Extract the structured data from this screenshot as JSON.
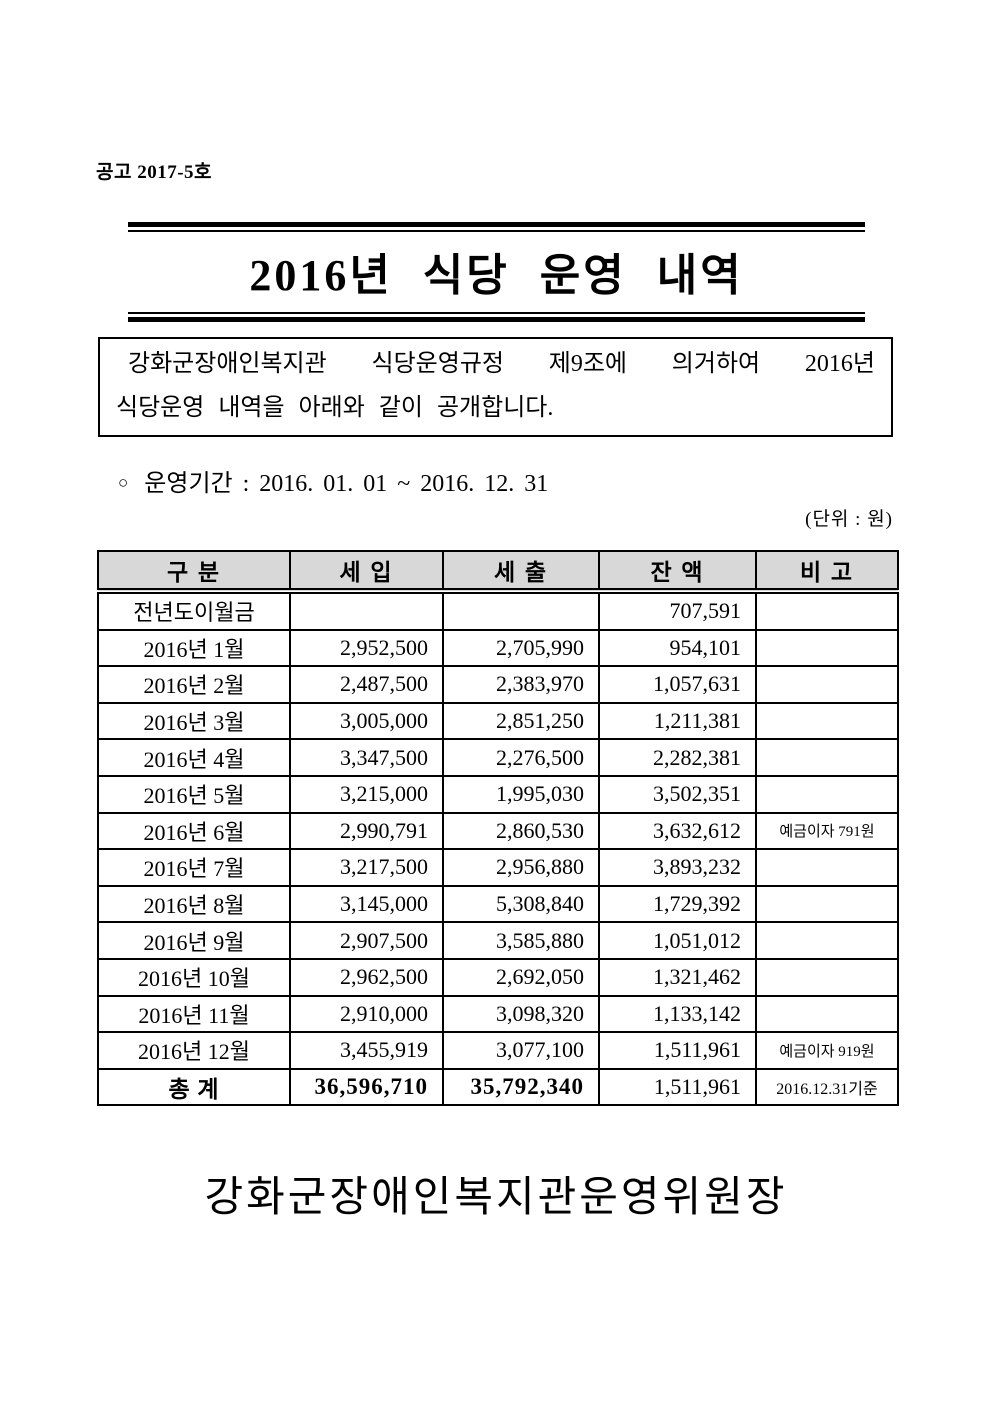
{
  "doc": {
    "notice_number": "공고 2017-5호",
    "title": "2016년 식당 운영 내역",
    "intro_line1": "강화군장애인복지관 식당운영규정 제9조에 의거하여 2016년",
    "intro_line2": "식당운영 내역을 아래와 같이 공개합니다.",
    "period_bullet": "○",
    "period_text": "운영기간 : 2016. 01. 01 ~ 2016. 12. 31",
    "unit_note": "(단위 : 원)",
    "signature": "강화군장애인복지관운영위원장"
  },
  "colors": {
    "paper": "#ffffff",
    "ink": "#000000",
    "table_header_bg": "#d8d8d8"
  },
  "table": {
    "headers": [
      "구 분",
      "세 입",
      "세 출",
      "잔 액",
      "비 고"
    ],
    "rows": [
      {
        "label": "전년도이월금",
        "income": "",
        "expense": "",
        "balance": "707,591",
        "note": ""
      },
      {
        "label": "2016년 1월",
        "income": "2,952,500",
        "expense": "2,705,990",
        "balance": "954,101",
        "note": ""
      },
      {
        "label": "2016년 2월",
        "income": "2,487,500",
        "expense": "2,383,970",
        "balance": "1,057,631",
        "note": ""
      },
      {
        "label": "2016년 3월",
        "income": "3,005,000",
        "expense": "2,851,250",
        "balance": "1,211,381",
        "note": ""
      },
      {
        "label": "2016년 4월",
        "income": "3,347,500",
        "expense": "2,276,500",
        "balance": "2,282,381",
        "note": ""
      },
      {
        "label": "2016년 5월",
        "income": "3,215,000",
        "expense": "1,995,030",
        "balance": "3,502,351",
        "note": ""
      },
      {
        "label": "2016년 6월",
        "income": "2,990,791",
        "expense": "2,860,530",
        "balance": "3,632,612",
        "note": "예금이자 791원"
      },
      {
        "label": "2016년 7월",
        "income": "3,217,500",
        "expense": "2,956,880",
        "balance": "3,893,232",
        "note": ""
      },
      {
        "label": "2016년 8월",
        "income": "3,145,000",
        "expense": "5,308,840",
        "balance": "1,729,392",
        "note": ""
      },
      {
        "label": "2016년 9월",
        "income": "2,907,500",
        "expense": "3,585,880",
        "balance": "1,051,012",
        "note": ""
      },
      {
        "label": "2016년 10월",
        "income": "2,962,500",
        "expense": "2,692,050",
        "balance": "1,321,462",
        "note": ""
      },
      {
        "label": "2016년 11월",
        "income": "2,910,000",
        "expense": "3,098,320",
        "balance": "1,133,142",
        "note": ""
      },
      {
        "label": "2016년 12월",
        "income": "3,455,919",
        "expense": "3,077,100",
        "balance": "1,511,961",
        "note": "예금이자 919원"
      },
      {
        "label": "총 계",
        "income": "36,596,710",
        "expense": "35,792,340",
        "balance": "1,511,961",
        "note": "2016.12.31기준"
      }
    ]
  }
}
